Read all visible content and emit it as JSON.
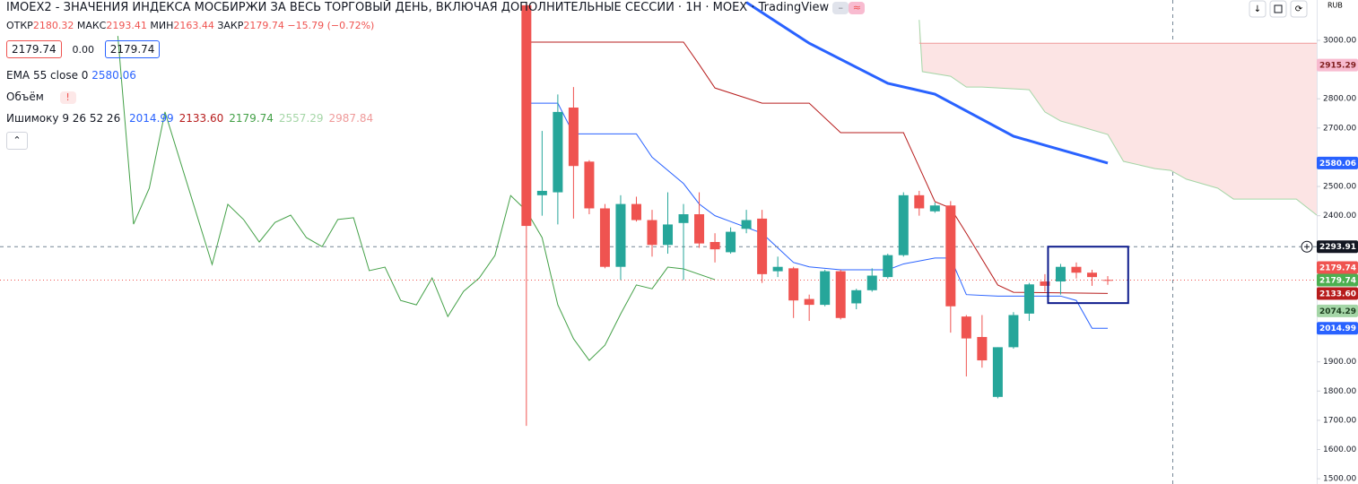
{
  "header": {
    "title": "IMOEX2 - ЗНАЧЕНИЯ ИНДЕКСА МОСБИРЖИ ЗА ВЕСЬ ТОРГОВЫЙ ДЕНЬ, ВКЛЮЧАЯ ДОПОЛНИТЕЛЬНЫЕ СЕССИИ · 1Н · MOEX · TradingView",
    "ohlc": [
      {
        "label": "ОТКР",
        "value": "2180.32"
      },
      {
        "label": "МАКС",
        "value": "2193.41"
      },
      {
        "label": "МИН",
        "value": "2163.44"
      },
      {
        "label": "ЗАКР",
        "value": "2179.74"
      }
    ],
    "change": "−15.79 (−0.72%)",
    "buttons": [
      "2179.74",
      "0.00",
      "2179.74"
    ],
    "ema": {
      "name": "EMA 55 close 0",
      "value": "2580.06"
    },
    "volume": {
      "name": "Объём",
      "flag": "!"
    },
    "ichimoku": {
      "name": "Ишимоку 9 26 52 26",
      "values": [
        "2014.99",
        "2133.60",
        "2179.74",
        "2557.29",
        "2987.84"
      ],
      "colors": [
        "#2962ff",
        "#b71c1c",
        "#43a047",
        "#a5d6a7",
        "#ef9a9a"
      ]
    },
    "currency": "RUB"
  },
  "chart_data": {
    "type": "candlestick",
    "xlim": [
      -33.5,
      50.3
    ],
    "ylim": [
      1482,
      3138
    ],
    "yticks": [
      {
        "value": 1500,
        "label": "1500.00"
      },
      {
        "value": 1600,
        "label": "1600.00"
      },
      {
        "value": 1700,
        "label": "1700.00"
      },
      {
        "value": 1800,
        "label": "1800.00"
      },
      {
        "value": 1900,
        "label": "1900.00"
      },
      {
        "value": 2400,
        "label": "2400.00"
      },
      {
        "value": 2500,
        "label": "2500.00"
      },
      {
        "value": 2700,
        "label": "2700.00"
      },
      {
        "value": 2800,
        "label": "2800.00"
      },
      {
        "value": 3000,
        "label": "3000.00"
      }
    ],
    "up_color": "#26a69a",
    "down_color": "#ef5350",
    "candles": {
      "x": [
        0,
        1,
        2,
        3,
        4,
        5,
        6,
        7,
        8,
        9,
        10,
        11,
        12,
        13,
        14,
        15,
        16,
        17,
        18,
        19,
        20,
        21,
        22,
        23,
        24,
        25,
        26,
        27,
        28,
        29,
        30,
        31,
        32,
        33,
        34,
        35,
        36,
        37
      ],
      "open": [
        3120,
        2470,
        2480,
        2770,
        2585,
        2425,
        2225,
        2440,
        2385,
        2300,
        2375,
        2405,
        2310,
        2275,
        2355,
        2390,
        2210,
        2220,
        2115,
        2095,
        2210,
        2100,
        2145,
        2190,
        2265,
        2470,
        2415,
        2435,
        2055,
        1985,
        1780,
        1950,
        2065,
        2175,
        2175,
        2225,
        2205,
        2180.32
      ],
      "high": [
        3130,
        2690,
        2815,
        2840,
        2590,
        2440,
        2470,
        2465,
        2420,
        2480,
        2440,
        2480,
        2340,
        2360,
        2420,
        2420,
        2260,
        2225,
        2130,
        2215,
        2215,
        2150,
        2220,
        2270,
        2480,
        2485,
        2445,
        2450,
        2060,
        2060,
        1950,
        2070,
        2170,
        2200,
        2235,
        2240,
        2215,
        2193.41
      ],
      "low": [
        1681,
        2400,
        2370,
        2390,
        2405,
        2220,
        2180,
        2380,
        2260,
        2270,
        2180,
        2290,
        2240,
        2270,
        2340,
        2170,
        2190,
        2050,
        2040,
        2090,
        2045,
        2080,
        2140,
        2185,
        2260,
        2400,
        2410,
        2000,
        1850,
        1880,
        1775,
        1945,
        2040,
        2140,
        2130,
        2185,
        2160,
        2163.44
      ],
      "close": [
        2365,
        2485,
        2755,
        2570,
        2425,
        2225,
        2440,
        2385,
        2300,
        2370,
        2405,
        2305,
        2285,
        2345,
        2385,
        2200,
        2225,
        2110,
        2095,
        2210,
        2050,
        2145,
        2195,
        2265,
        2470,
        2425,
        2435,
        2090,
        1980,
        1905,
        1950,
        2060,
        2165,
        2160,
        2225,
        2205,
        2190,
        2179.74
      ]
    },
    "lines": {
      "ema": {
        "color": "#2962ff",
        "width": 3,
        "x": [
          14,
          18,
          23,
          26,
          31,
          33,
          37
        ],
        "values": [
          3130,
          2990,
          2853,
          2816,
          2672,
          2641,
          2580
        ]
      },
      "conversion": {
        "color": "#2962ff",
        "width": 1,
        "x": [
          0,
          2,
          3,
          7,
          8,
          10,
          11,
          12,
          13,
          15,
          17,
          18,
          20,
          23,
          24,
          26,
          27,
          28,
          30,
          32,
          34,
          35,
          36,
          37
        ],
        "values": [
          2785,
          2785,
          2680,
          2680,
          2600,
          2510,
          2440,
          2400,
          2380,
          2340,
          2240,
          2225,
          2215,
          2215,
          2235,
          2255,
          2255,
          2130,
          2125,
          2125,
          2125,
          2110,
          2015,
          2015
        ]
      },
      "base": {
        "color": "#b71c1c",
        "width": 1,
        "x": [
          0,
          10,
          11,
          12,
          15,
          18,
          20,
          24,
          26,
          27,
          28,
          30,
          31,
          37
        ],
        "values": [
          2994,
          2994,
          2917,
          2837,
          2785,
          2785,
          2684,
          2684,
          2448,
          2426,
          2340,
          2163,
          2138,
          2134
        ]
      },
      "lagging": {
        "color": "#43a047",
        "width": 1,
        "x": [
          -26,
          -25,
          -24,
          -23,
          -20,
          -19,
          -18,
          -17,
          -16,
          -15,
          -14,
          -13,
          -12,
          -11,
          -10,
          -9,
          -8,
          -7,
          -6,
          -5,
          -4,
          -3,
          -2,
          -1,
          0,
          1,
          2,
          3,
          4,
          5,
          6,
          7,
          8,
          9,
          10,
          12
        ],
        "values": [
          3015,
          2371,
          2494,
          2755,
          2233,
          2439,
          2387,
          2310,
          2377,
          2402,
          2325,
          2294,
          2387,
          2393,
          2212,
          2224,
          2110,
          2095,
          2187,
          2055,
          2141,
          2187,
          2264,
          2469,
          2417,
          2325,
          2095,
          1979,
          1905,
          1957,
          2064,
          2163,
          2150,
          2224,
          2218,
          2181
        ]
      },
      "span_a": {
        "color": "#a5d6a7",
        "width": 1,
        "x": [
          25,
          25.2,
          27,
          28,
          29,
          32,
          33,
          34,
          35,
          37,
          38,
          40,
          41,
          42,
          44,
          45,
          49,
          50.3
        ],
        "values": [
          3070,
          2893,
          2877,
          2840,
          2840,
          2831,
          2755,
          2724,
          2709,
          2678,
          2586,
          2561,
          2555,
          2525,
          2494,
          2457,
          2457,
          2402
        ]
      },
      "span_b": {
        "color": "#ef9a9a",
        "width": 1,
        "x": [
          25,
          50.3
        ],
        "values": [
          2990,
          2990
        ]
      }
    },
    "cloud_color": "#fce4e4",
    "price_labels": [
      {
        "value": 2915.29,
        "color": "#f8bbd0",
        "text_color": "#7f1d1d"
      },
      {
        "value": 2580.06,
        "color": "#2962ff",
        "text_color": "#ffffff"
      },
      {
        "value": 2293.91,
        "color": "#131722",
        "text_color": "#ffffff",
        "line": "dashed"
      },
      {
        "value": 2179.74,
        "color": "#4caf50",
        "text_color": "#ffffff"
      },
      {
        "value": 2179.74,
        "color": "#ef5350",
        "text_color": "#ffffff",
        "line": "dotted"
      },
      {
        "value": 2133.6,
        "label": "2133.60",
        "color": "#b71c1c",
        "text_color": "#ffffff"
      },
      {
        "value": 2074.29,
        "color": "#a5d6a7",
        "text_color": "#1b3d1d"
      },
      {
        "value": 2014.99,
        "color": "#2962ff",
        "text_color": "#ffffff"
      }
    ],
    "annotation_box": {
      "color": "#0d1b8c",
      "x": [
        33.2,
        38.3
      ],
      "y": [
        2101,
        2294
      ]
    }
  }
}
